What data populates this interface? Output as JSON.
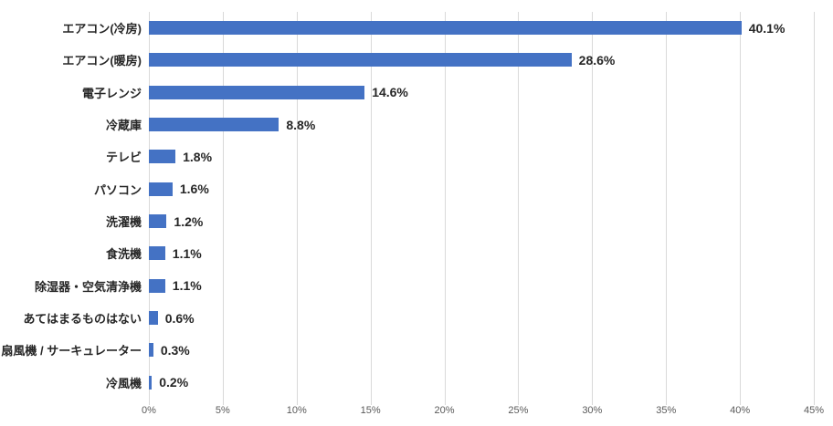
{
  "chart_data": {
    "type": "bar",
    "orientation": "horizontal",
    "title": "",
    "xlabel": "",
    "ylabel": "",
    "grid": true,
    "legend": false,
    "xlim": [
      0,
      45
    ],
    "categories": [
      "エアコン(冷房)",
      "エアコン(暖房)",
      "電子レンジ",
      "冷蔵庫",
      "テレビ",
      "パソコン",
      "洗濯機",
      "食洗機",
      "除湿器・空気清浄機",
      "あてはまるものはない",
      "扇風機 / サーキュレーター",
      "冷風機"
    ],
    "values": [
      40.1,
      28.6,
      14.6,
      8.8,
      1.8,
      1.6,
      1.2,
      1.1,
      1.1,
      0.6,
      0.3,
      0.2
    ],
    "value_labels": [
      "40.1%",
      "28.6%",
      "14.6%",
      "8.8%",
      "1.8%",
      "1.6%",
      "1.2%",
      "1.1%",
      "1.1%",
      "0.6%",
      "0.3%",
      "0.2%"
    ],
    "x_tick_values": [
      0,
      5,
      10,
      15,
      20,
      25,
      30,
      35,
      40,
      45
    ],
    "x_tick_labels": [
      "0%",
      "5%",
      "10%",
      "15%",
      "20%",
      "25%",
      "30%",
      "35%",
      "40%",
      "45%"
    ],
    "colors": {
      "bar": "#4472C4",
      "gridline": "#D9D9D9",
      "tick_label": "#595959",
      "category_label": "#262626",
      "value_label": "#262626",
      "background": "#FFFFFF"
    }
  }
}
